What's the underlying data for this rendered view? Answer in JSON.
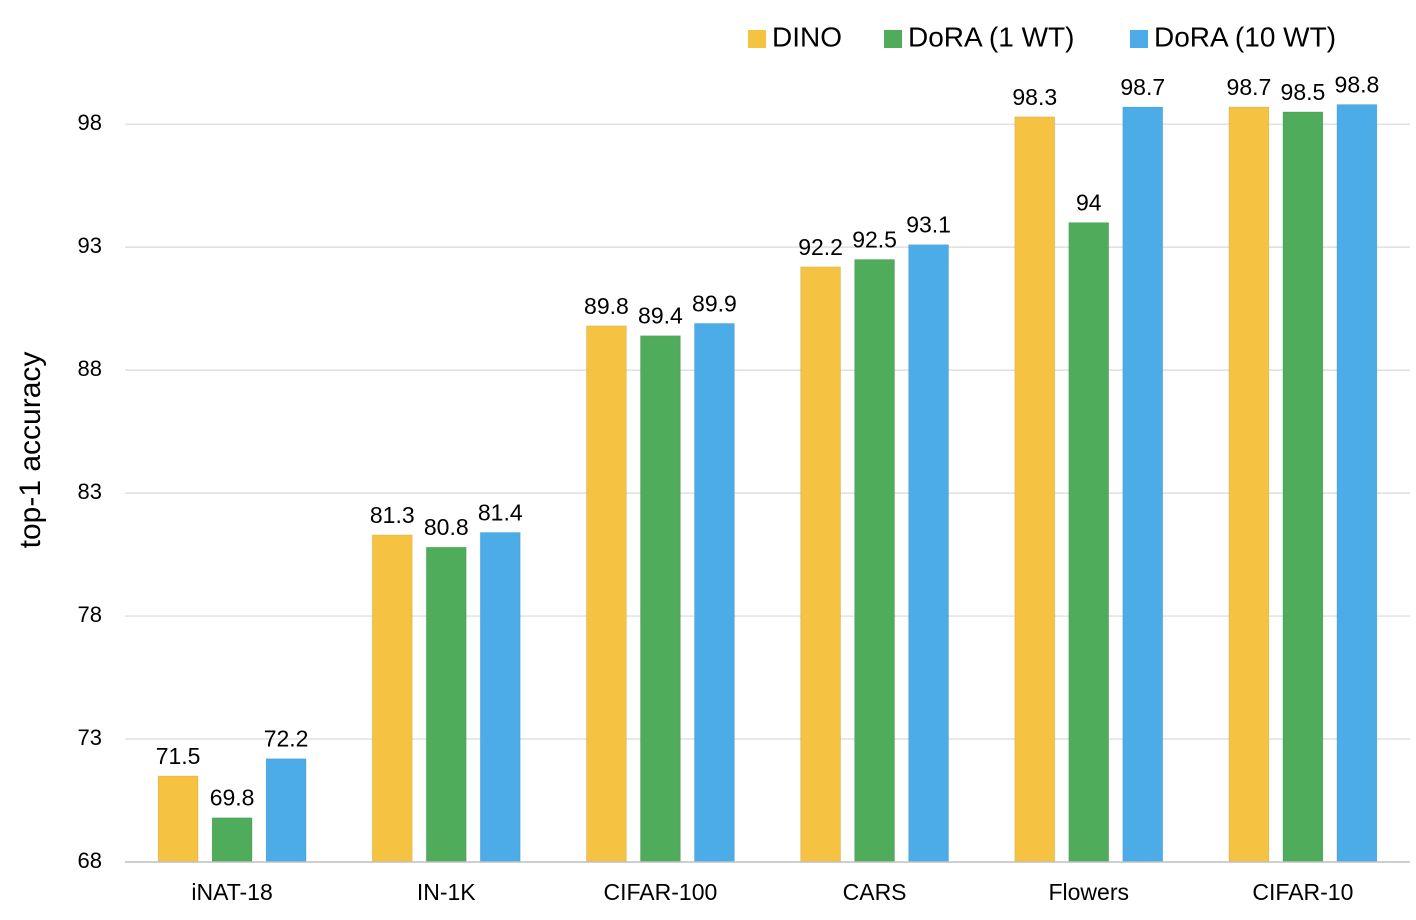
{
  "chart_data": {
    "type": "bar",
    "title": "",
    "xlabel": "",
    "ylabel": "top-1 accuracy",
    "ylim": [
      68,
      100
    ],
    "yticks": [
      68,
      73,
      78,
      83,
      88,
      93,
      98
    ],
    "grid": true,
    "legend_position": "top-right",
    "categories": [
      "iNAT-18",
      "IN-1K",
      "CIFAR-100",
      "CARS",
      "Flowers",
      "CIFAR-10"
    ],
    "series": [
      {
        "name": "DINO",
        "color": "#F5C242",
        "values": [
          71.5,
          81.3,
          89.8,
          92.2,
          98.3,
          98.7
        ]
      },
      {
        "name": "DoRA (1 WT)",
        "color": "#4FAC5B",
        "values": [
          69.8,
          80.8,
          89.4,
          92.5,
          94,
          98.5
        ]
      },
      {
        "name": "DoRA (10 WT)",
        "color": "#4BACE8",
        "values": [
          72.2,
          81.4,
          89.9,
          93.1,
          98.7,
          98.8
        ]
      }
    ]
  }
}
